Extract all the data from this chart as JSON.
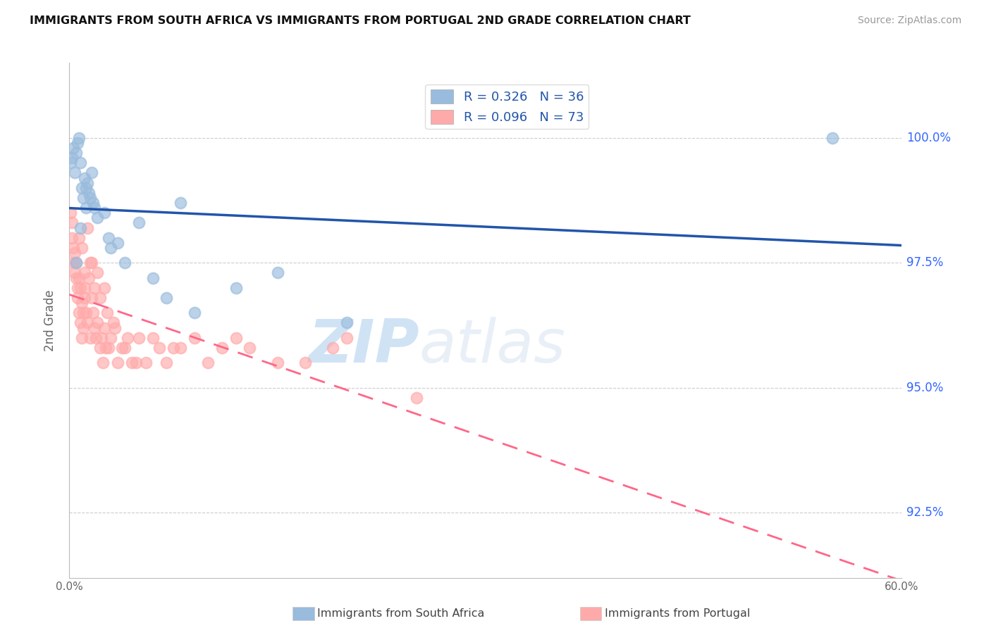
{
  "title": "IMMIGRANTS FROM SOUTH AFRICA VS IMMIGRANTS FROM PORTUGAL 2ND GRADE CORRELATION CHART",
  "source": "Source: ZipAtlas.com",
  "ylabel": "2nd Grade",
  "y_ticks": [
    92.5,
    95.0,
    97.5,
    100.0
  ],
  "y_tick_labels": [
    "92.5%",
    "95.0%",
    "97.5%",
    "100.0%"
  ],
  "x_range": [
    0.0,
    0.6
  ],
  "y_range": [
    91.2,
    101.5
  ],
  "legend_label_blue": "Immigrants from South Africa",
  "legend_label_pink": "Immigrants from Portugal",
  "R_blue": 0.326,
  "N_blue": 36,
  "R_pink": 0.096,
  "N_pink": 73,
  "blue_color": "#99BBDD",
  "pink_color": "#FFAAAA",
  "blue_line_color": "#2255AA",
  "pink_line_color": "#FF6688",
  "watermark_zip": "ZIP",
  "watermark_atlas": "atlas",
  "blue_scatter_x": [
    0.001,
    0.002,
    0.003,
    0.004,
    0.005,
    0.006,
    0.007,
    0.008,
    0.009,
    0.01,
    0.011,
    0.012,
    0.013,
    0.014,
    0.015,
    0.016,
    0.017,
    0.018,
    0.02,
    0.025,
    0.028,
    0.03,
    0.035,
    0.04,
    0.05,
    0.06,
    0.07,
    0.08,
    0.09,
    0.12,
    0.15,
    0.2,
    0.005,
    0.008,
    0.012,
    0.55
  ],
  "blue_scatter_y": [
    99.5,
    99.6,
    99.8,
    99.3,
    99.7,
    99.9,
    100.0,
    99.5,
    99.0,
    98.8,
    99.2,
    99.0,
    99.1,
    98.9,
    98.8,
    99.3,
    98.7,
    98.6,
    98.4,
    98.5,
    98.0,
    97.8,
    97.9,
    97.5,
    98.3,
    97.2,
    96.8,
    98.7,
    96.5,
    97.0,
    97.3,
    96.3,
    97.5,
    98.2,
    98.6,
    100.0
  ],
  "pink_scatter_x": [
    0.001,
    0.002,
    0.002,
    0.003,
    0.003,
    0.004,
    0.004,
    0.005,
    0.005,
    0.006,
    0.006,
    0.007,
    0.007,
    0.008,
    0.008,
    0.009,
    0.009,
    0.01,
    0.01,
    0.011,
    0.011,
    0.012,
    0.013,
    0.014,
    0.015,
    0.016,
    0.017,
    0.018,
    0.019,
    0.02,
    0.022,
    0.023,
    0.024,
    0.025,
    0.026,
    0.028,
    0.03,
    0.032,
    0.035,
    0.04,
    0.042,
    0.045,
    0.05,
    0.055,
    0.06,
    0.065,
    0.07,
    0.08,
    0.09,
    0.1,
    0.11,
    0.12,
    0.13,
    0.15,
    0.17,
    0.19,
    0.2,
    0.015,
    0.02,
    0.025,
    0.007,
    0.009,
    0.011,
    0.013,
    0.016,
    0.018,
    0.022,
    0.027,
    0.033,
    0.038,
    0.048,
    0.075,
    0.25
  ],
  "pink_scatter_y": [
    98.5,
    98.3,
    98.0,
    97.8,
    97.5,
    97.7,
    97.3,
    97.5,
    97.2,
    97.0,
    96.8,
    97.2,
    96.5,
    97.0,
    96.3,
    96.7,
    96.0,
    96.5,
    96.2,
    97.0,
    96.8,
    96.5,
    96.3,
    97.2,
    96.0,
    96.8,
    96.5,
    96.2,
    96.0,
    96.3,
    95.8,
    96.0,
    95.5,
    96.2,
    95.8,
    95.8,
    96.0,
    96.3,
    95.5,
    95.8,
    96.0,
    95.5,
    96.0,
    95.5,
    96.0,
    95.8,
    95.5,
    95.8,
    96.0,
    95.5,
    95.8,
    96.0,
    95.8,
    95.5,
    95.5,
    95.8,
    96.0,
    97.5,
    97.3,
    97.0,
    98.0,
    97.8,
    97.3,
    98.2,
    97.5,
    97.0,
    96.8,
    96.5,
    96.2,
    95.8,
    95.5,
    95.8,
    94.8
  ]
}
